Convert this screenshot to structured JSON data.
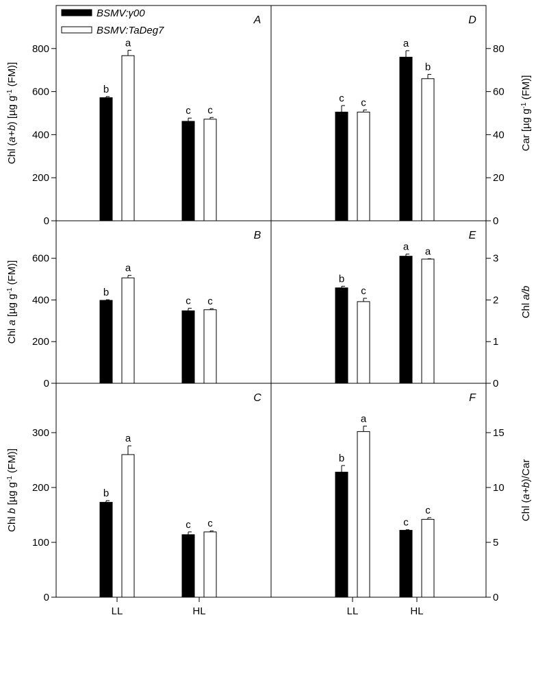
{
  "legend": [
    {
      "label": "BSMV:γ00",
      "fill": "#000000"
    },
    {
      "label": "BSMV:TaDeg7",
      "fill": "#ffffff"
    }
  ],
  "chart_data": [
    {
      "panel": "A",
      "type": "bar",
      "side": "left",
      "ylabel": "Chl (a+b) [µg g-1 (FM)]",
      "ylabel_parts": [
        "Chl (",
        "a+b",
        ") [µg g",
        "-1",
        " (FM)]"
      ],
      "ylim": [
        0,
        1000
      ],
      "yticks": [
        0,
        200,
        400,
        600,
        800
      ],
      "categories": [
        "LL",
        "HL"
      ],
      "show_categories": false,
      "series": [
        {
          "name": "BSMV:γ00",
          "values": [
            572,
            462
          ],
          "errors": [
            5,
            15
          ],
          "letters": [
            "b",
            "c"
          ]
        },
        {
          "name": "BSMV:TaDeg7",
          "values": [
            767,
            472
          ],
          "errors": [
            25,
            8
          ],
          "letters": [
            "a",
            "c"
          ]
        }
      ]
    },
    {
      "panel": "D",
      "type": "bar",
      "side": "right",
      "ylabel": "Car [µg g-1 (FM)]",
      "ylabel_parts": [
        "Car [µg g",
        "-1",
        " (FM)]"
      ],
      "ylim": [
        0,
        100
      ],
      "yticks": [
        0,
        20,
        40,
        60,
        80
      ],
      "categories": [
        "LL",
        "HL"
      ],
      "show_categories": false,
      "series": [
        {
          "name": "BSMV:γ00",
          "values": [
            50.5,
            76
          ],
          "errors": [
            3,
            3
          ],
          "letters": [
            "c",
            "a"
          ]
        },
        {
          "name": "BSMV:TaDeg7",
          "values": [
            50.5,
            66
          ],
          "errors": [
            1,
            2
          ],
          "letters": [
            "c",
            "b"
          ]
        }
      ]
    },
    {
      "panel": "B",
      "type": "bar",
      "side": "left",
      "ylabel": "Chl a [µg g-1 (FM)]",
      "ylabel_parts": [
        "Chl ",
        "a",
        " [µg g",
        "-1",
        " (FM)]"
      ],
      "ylim": [
        0,
        780
      ],
      "yticks": [
        0,
        200,
        400,
        600
      ],
      "categories": [
        "LL",
        "HL"
      ],
      "show_categories": false,
      "series": [
        {
          "name": "BSMV:γ00",
          "values": [
            398,
            348
          ],
          "errors": [
            3,
            12
          ],
          "letters": [
            "b",
            "c"
          ]
        },
        {
          "name": "BSMV:TaDeg7",
          "values": [
            506,
            353
          ],
          "errors": [
            12,
            5
          ],
          "letters": [
            "a",
            "c"
          ]
        }
      ]
    },
    {
      "panel": "E",
      "type": "bar",
      "side": "right",
      "ylabel": "Chl a/b",
      "ylabel_parts": [
        "Chl ",
        "a/b"
      ],
      "ylim": [
        0,
        3.9
      ],
      "yticks": [
        0,
        1,
        2,
        3
      ],
      "categories": [
        "LL",
        "HL"
      ],
      "show_categories": false,
      "series": [
        {
          "name": "BSMV:γ00",
          "values": [
            2.29,
            3.05
          ],
          "errors": [
            0.04,
            0.05
          ],
          "letters": [
            "b",
            "a"
          ]
        },
        {
          "name": "BSMV:TaDeg7",
          "values": [
            1.96,
            2.98
          ],
          "errors": [
            0.08,
            0.01
          ],
          "letters": [
            "c",
            "a"
          ]
        }
      ]
    },
    {
      "panel": "C",
      "type": "bar",
      "side": "left",
      "ylabel": "Chl b [µg g-1 (FM)]",
      "ylabel_parts": [
        "Chl ",
        "b",
        " [µg g",
        "-1",
        " (FM)]"
      ],
      "ylim": [
        0,
        390
      ],
      "yticks": [
        0,
        100,
        200,
        300
      ],
      "categories": [
        "LL",
        "HL"
      ],
      "show_categories": true,
      "series": [
        {
          "name": "BSMV:γ00",
          "values": [
            173,
            114
          ],
          "errors": [
            3,
            5
          ],
          "letters": [
            "b",
            "c"
          ]
        },
        {
          "name": "BSMV:TaDeg7",
          "values": [
            260,
            119
          ],
          "errors": [
            16,
            2
          ],
          "letters": [
            "a",
            "c"
          ]
        }
      ]
    },
    {
      "panel": "F",
      "type": "bar",
      "side": "right",
      "ylabel": "Chl (a+b)/Car",
      "ylabel_parts": [
        "Chl (",
        "a+b",
        ")/Car"
      ],
      "ylim": [
        0,
        19.5
      ],
      "yticks": [
        0,
        5,
        10,
        15
      ],
      "categories": [
        "LL",
        "HL"
      ],
      "show_categories": true,
      "series": [
        {
          "name": "BSMV:γ00",
          "values": [
            11.4,
            6.1
          ],
          "errors": [
            0.6,
            0.05
          ],
          "letters": [
            "b",
            "c"
          ]
        },
        {
          "name": "BSMV:TaDeg7",
          "values": [
            15.1,
            7.1
          ],
          "errors": [
            0.5,
            0.15
          ],
          "letters": [
            "a",
            "c"
          ]
        }
      ]
    }
  ]
}
